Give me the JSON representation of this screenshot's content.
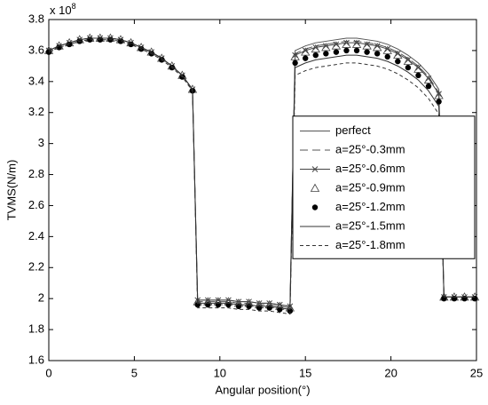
{
  "chart_data": {
    "type": "line",
    "xlabel": "Angular position(°)",
    "ylabel": "TVMS(N/m)",
    "y_multiplier": {
      "base": "x 10",
      "exponent": "8"
    },
    "xlim": [
      0,
      25
    ],
    "xticks": [
      0,
      5,
      10,
      15,
      20,
      25
    ],
    "ylim": [
      1.6,
      3.8
    ],
    "yticks": [
      1.6,
      1.8,
      2,
      2.2,
      2.4,
      2.6,
      2.8,
      3,
      3.2,
      3.4,
      3.6,
      3.8
    ],
    "grid": false,
    "legend_position": "right",
    "x": [
      0,
      0.6,
      1.2,
      1.8,
      2.4,
      3.0,
      3.6,
      4.2,
      4.8,
      5.4,
      6.0,
      6.6,
      7.2,
      7.8,
      8.4,
      8.7,
      9.3,
      9.9,
      10.5,
      11.1,
      11.7,
      12.3,
      12.9,
      13.5,
      14.1,
      14.4,
      15.0,
      15.6,
      16.2,
      16.8,
      17.4,
      18.0,
      18.6,
      19.2,
      19.8,
      20.4,
      21.0,
      21.6,
      22.2,
      22.8,
      23.1,
      23.7,
      24.3,
      24.9
    ],
    "series": [
      {
        "name": "perfect",
        "color": "#555555",
        "line": "solid",
        "marker": "none",
        "values": [
          3.6,
          3.63,
          3.65,
          3.67,
          3.68,
          3.68,
          3.68,
          3.67,
          3.65,
          3.62,
          3.59,
          3.55,
          3.5,
          3.44,
          3.35,
          1.99,
          1.99,
          1.99,
          1.99,
          1.98,
          1.98,
          1.97,
          1.97,
          1.96,
          1.95,
          3.6,
          3.63,
          3.65,
          3.66,
          3.67,
          3.68,
          3.68,
          3.67,
          3.66,
          3.64,
          3.61,
          3.57,
          3.52,
          3.45,
          3.35,
          2.01,
          2.01,
          2.01,
          2.01
        ]
      },
      {
        "name": "a=25°-0.3mm",
        "color": "#555555",
        "line": "longdash",
        "marker": "none",
        "values": [
          3.6,
          3.63,
          3.65,
          3.67,
          3.68,
          3.68,
          3.68,
          3.67,
          3.65,
          3.62,
          3.59,
          3.55,
          3.5,
          3.44,
          3.35,
          1.98,
          1.98,
          1.98,
          1.98,
          1.97,
          1.97,
          1.96,
          1.96,
          1.95,
          1.94,
          3.58,
          3.61,
          3.63,
          3.64,
          3.65,
          3.66,
          3.66,
          3.65,
          3.64,
          3.62,
          3.59,
          3.55,
          3.5,
          3.43,
          3.33,
          2.01,
          2.01,
          2.01,
          2.01
        ]
      },
      {
        "name": "a=25°-0.6mm",
        "color": "#444444",
        "line": "solid",
        "marker": "x",
        "values": [
          3.6,
          3.63,
          3.65,
          3.67,
          3.68,
          3.68,
          3.68,
          3.67,
          3.65,
          3.62,
          3.59,
          3.55,
          3.5,
          3.44,
          3.35,
          1.99,
          1.99,
          1.99,
          1.99,
          1.98,
          1.98,
          1.97,
          1.97,
          1.96,
          1.95,
          3.57,
          3.6,
          3.62,
          3.63,
          3.64,
          3.65,
          3.65,
          3.64,
          3.63,
          3.61,
          3.58,
          3.54,
          3.49,
          3.42,
          3.32,
          2.01,
          2.01,
          2.01,
          2.01
        ]
      },
      {
        "name": "a=25°-0.9mm",
        "color": "#444444",
        "line": "none",
        "marker": "triangle",
        "values": [
          3.6,
          3.63,
          3.65,
          3.67,
          3.68,
          3.68,
          3.68,
          3.67,
          3.65,
          3.62,
          3.59,
          3.55,
          3.5,
          3.44,
          3.35,
          1.98,
          1.98,
          1.98,
          1.98,
          1.97,
          1.97,
          1.96,
          1.96,
          1.95,
          1.94,
          3.56,
          3.59,
          3.61,
          3.62,
          3.63,
          3.64,
          3.64,
          3.63,
          3.62,
          3.6,
          3.57,
          3.53,
          3.48,
          3.41,
          3.31,
          2.01,
          2.01,
          2.01,
          2.01
        ]
      },
      {
        "name": "a=25°-1.2mm",
        "color": "#000000",
        "line": "none",
        "marker": "dot",
        "values": [
          3.59,
          3.62,
          3.64,
          3.66,
          3.67,
          3.67,
          3.67,
          3.66,
          3.64,
          3.61,
          3.58,
          3.54,
          3.49,
          3.43,
          3.34,
          1.96,
          1.96,
          1.96,
          1.96,
          1.95,
          1.95,
          1.94,
          1.94,
          1.93,
          1.92,
          3.52,
          3.55,
          3.57,
          3.58,
          3.59,
          3.6,
          3.6,
          3.59,
          3.58,
          3.56,
          3.53,
          3.49,
          3.44,
          3.37,
          3.27,
          2.0,
          2.0,
          2.0,
          2.0
        ]
      },
      {
        "name": "a=25°-1.5mm",
        "color": "#333333",
        "line": "solid",
        "marker": "none",
        "values": [
          3.6,
          3.63,
          3.65,
          3.67,
          3.68,
          3.68,
          3.68,
          3.67,
          3.65,
          3.62,
          3.59,
          3.55,
          3.5,
          3.44,
          3.35,
          1.97,
          1.97,
          1.97,
          1.97,
          1.96,
          1.96,
          1.95,
          1.95,
          1.94,
          1.93,
          3.49,
          3.52,
          3.54,
          3.55,
          3.56,
          3.57,
          3.57,
          3.56,
          3.55,
          3.53,
          3.5,
          3.46,
          3.41,
          3.34,
          3.24,
          2.01,
          2.01,
          2.01,
          2.01
        ]
      },
      {
        "name": "a=25°-1.8mm",
        "color": "#333333",
        "line": "dash",
        "marker": "none",
        "values": [
          3.59,
          3.62,
          3.64,
          3.66,
          3.67,
          3.67,
          3.67,
          3.66,
          3.64,
          3.61,
          3.58,
          3.54,
          3.49,
          3.43,
          3.34,
          1.94,
          1.94,
          1.94,
          1.94,
          1.93,
          1.93,
          1.92,
          1.92,
          1.91,
          1.9,
          3.44,
          3.47,
          3.49,
          3.5,
          3.51,
          3.52,
          3.52,
          3.51,
          3.5,
          3.48,
          3.45,
          3.41,
          3.36,
          3.29,
          3.19,
          2.01,
          2.01,
          2.01,
          2.01
        ]
      }
    ]
  }
}
